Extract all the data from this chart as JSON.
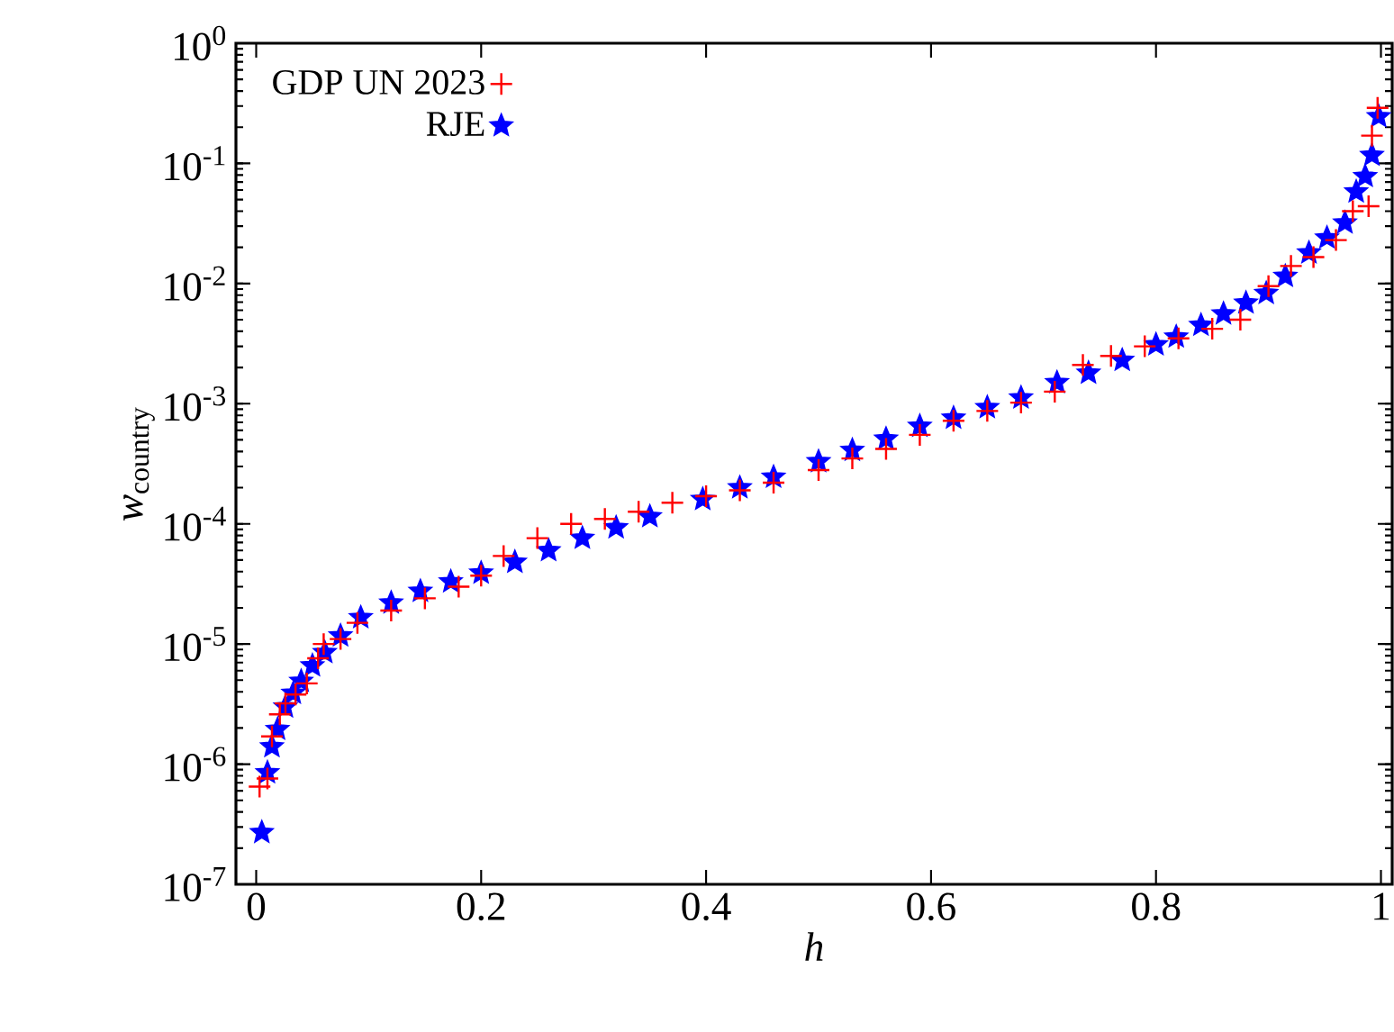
{
  "chart_data": {
    "type": "scatter",
    "xlabel": "h",
    "ylabel": "*w*$_{country}$",
    "log": "y",
    "xlim": [
      -0.018,
      1.01
    ],
    "ylim": [
      1e-07,
      1
    ],
    "xticks": [
      0,
      0.2,
      0.4,
      0.6,
      0.8,
      1
    ],
    "yticks": [
      {
        "value": 1e-07,
        "label": "10$^{-7}$"
      },
      {
        "value": 1e-06,
        "label": "10$^{-6}$"
      },
      {
        "value": 1e-05,
        "label": "10$^{-5}$"
      },
      {
        "value": 0.0001,
        "label": "10$^{-4}$"
      },
      {
        "value": 0.001,
        "label": "10$^{-3}$"
      },
      {
        "value": 0.01,
        "label": "10$^{-2}$"
      },
      {
        "value": 0.1,
        "label": "10$^{-1}$"
      },
      {
        "value": 1,
        "label": "10$^{0}$"
      }
    ],
    "grid": false,
    "legend": "top left",
    "series": [
      {
        "name": "GDP UN 2023",
        "color": "#ff0000",
        "marker": "cross",
        "x": [
          0.003,
          0.01,
          0.014,
          0.021,
          0.026,
          0.035,
          0.045,
          0.055,
          0.06,
          0.075,
          0.09,
          0.12,
          0.15,
          0.18,
          0.2,
          0.22,
          0.25,
          0.28,
          0.31,
          0.34,
          0.37,
          0.4,
          0.43,
          0.46,
          0.5,
          0.53,
          0.56,
          0.59,
          0.62,
          0.65,
          0.68,
          0.71,
          0.735,
          0.76,
          0.79,
          0.82,
          0.85,
          0.875,
          0.9,
          0.92,
          0.94,
          0.96,
          0.975,
          0.989,
          0.992,
          0.997
        ],
        "values": [
          6.5e-07,
          7.6e-07,
          1.7e-06,
          2.6e-06,
          3.2e-06,
          3.8e-06,
          4.7e-06,
          7.6e-06,
          1e-05,
          1.1e-05,
          1.5e-05,
          1.9e-05,
          2.4e-05,
          3e-05,
          3.7e-05,
          5.4e-05,
          7.6e-05,
          0.0001,
          0.00011,
          0.000126,
          0.00015,
          0.00017,
          0.00019,
          0.00022,
          0.00028,
          0.00035,
          0.00042,
          0.00055,
          0.00072,
          0.00087,
          0.00102,
          0.00126,
          0.0021,
          0.0025,
          0.003,
          0.0035,
          0.0042,
          0.005,
          0.0095,
          0.014,
          0.0166,
          0.023,
          0.04,
          0.044,
          0.17,
          0.29
        ]
      },
      {
        "name": "RJE",
        "color": "#0000ff",
        "marker": "star",
        "x": [
          0.005,
          0.01,
          0.014,
          0.019,
          0.026,
          0.033,
          0.04,
          0.05,
          0.061,
          0.075,
          0.093,
          0.12,
          0.146,
          0.173,
          0.2,
          0.23,
          0.26,
          0.29,
          0.32,
          0.35,
          0.397,
          0.43,
          0.46,
          0.5,
          0.53,
          0.56,
          0.59,
          0.62,
          0.65,
          0.68,
          0.712,
          0.74,
          0.77,
          0.8,
          0.818,
          0.84,
          0.86,
          0.88,
          0.898,
          0.915,
          0.936,
          0.952,
          0.968,
          0.978,
          0.986,
          0.992,
          0.998
        ],
        "values": [
          2.7e-07,
          8.5e-07,
          1.4e-06,
          1.95e-06,
          3e-06,
          3.9e-06,
          4.9e-06,
          6.6e-06,
          8.5e-06,
          1.17e-05,
          1.66e-05,
          2.2e-05,
          2.75e-05,
          3.3e-05,
          3.9e-05,
          4.8e-05,
          6e-05,
          7.6e-05,
          9.3e-05,
          0.000115,
          0.00016,
          0.0002,
          0.000245,
          0.00033,
          0.00041,
          0.00051,
          0.00065,
          0.00076,
          0.00093,
          0.00112,
          0.0015,
          0.0018,
          0.0023,
          0.0031,
          0.0036,
          0.0045,
          0.0056,
          0.0069,
          0.0083,
          0.0115,
          0.018,
          0.024,
          0.032,
          0.058,
          0.078,
          0.117,
          0.245
        ]
      }
    ]
  }
}
